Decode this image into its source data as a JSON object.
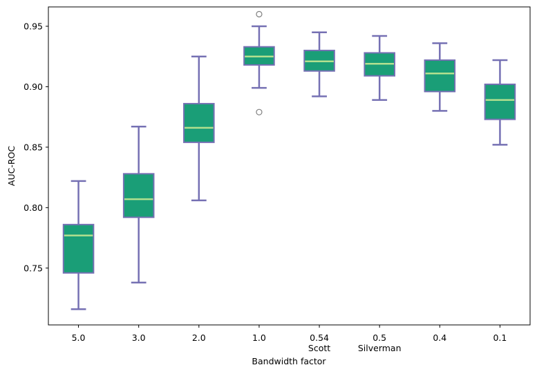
{
  "chart_data": {
    "type": "box",
    "title": "",
    "xlabel": "Bandwidth factor",
    "ylabel": "AUC-ROC",
    "ylim": [
      0.703,
      0.966
    ],
    "yticks": [
      0.75,
      0.8,
      0.85,
      0.9,
      0.95
    ],
    "ytick_labels": [
      "0.75",
      "0.80",
      "0.85",
      "0.90",
      "0.95"
    ],
    "categories": [
      "5.0",
      "3.0",
      "2.0",
      "1.0",
      "0.54",
      "0.5",
      "0.4",
      "0.1"
    ],
    "sublabels": [
      "",
      "",
      "",
      "",
      "Scott",
      "Silverman",
      "",
      ""
    ],
    "boxes": [
      {
        "whisker_low": 0.716,
        "q1": 0.746,
        "median": 0.777,
        "q3": 0.786,
        "whisker_high": 0.822,
        "outliers": []
      },
      {
        "whisker_low": 0.738,
        "q1": 0.792,
        "median": 0.807,
        "q3": 0.828,
        "whisker_high": 0.867,
        "outliers": []
      },
      {
        "whisker_low": 0.806,
        "q1": 0.854,
        "median": 0.866,
        "q3": 0.886,
        "whisker_high": 0.925,
        "outliers": []
      },
      {
        "whisker_low": 0.899,
        "q1": 0.918,
        "median": 0.925,
        "q3": 0.933,
        "whisker_high": 0.95,
        "outliers": [
          0.96,
          0.879
        ]
      },
      {
        "whisker_low": 0.892,
        "q1": 0.913,
        "median": 0.921,
        "q3": 0.93,
        "whisker_high": 0.945,
        "outliers": []
      },
      {
        "whisker_low": 0.889,
        "q1": 0.909,
        "median": 0.919,
        "q3": 0.928,
        "whisker_high": 0.942,
        "outliers": []
      },
      {
        "whisker_low": 0.88,
        "q1": 0.896,
        "median": 0.911,
        "q3": 0.922,
        "whisker_high": 0.936,
        "outliers": []
      },
      {
        "whisker_low": 0.852,
        "q1": 0.873,
        "median": 0.889,
        "q3": 0.902,
        "whisker_high": 0.922,
        "outliers": []
      }
    ],
    "colors": {
      "box_fill": "#1a9e77",
      "box_edge": "#7570b3",
      "whisker": "#7570b3",
      "median": "#b3e08f",
      "outlier_edge": "#7f7f7f"
    }
  }
}
